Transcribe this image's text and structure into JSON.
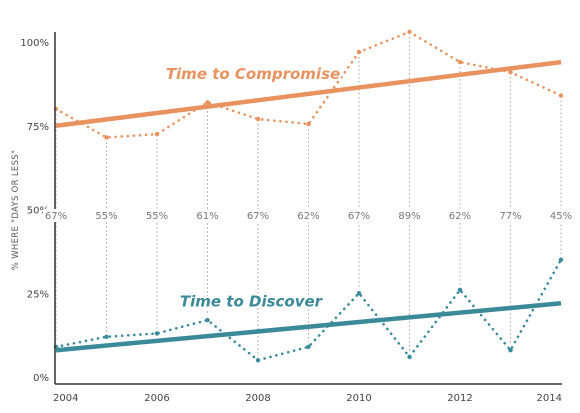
{
  "chart_data": {
    "type": "line",
    "title": "",
    "xlabel": "",
    "ylabel": "% WHERE \"DAYS OR LESS\"",
    "x_ticks": [
      "2004",
      "2006",
      "2008",
      "2010",
      "2012",
      "2014"
    ],
    "y_ticks": [
      "0%",
      "25%",
      "50%",
      "75%",
      "100%"
    ],
    "ylim": [
      0,
      100
    ],
    "xlim": [
      2004,
      2014
    ],
    "grid": false,
    "legend": "inline labels",
    "x": [
      2004,
      2005,
      2006,
      2007,
      2008,
      2009,
      2010,
      2011,
      2012,
      2013,
      2014
    ],
    "gap_labels": [
      "67%",
      "55%",
      "55%",
      "61%",
      "67%",
      "62%",
      "67%",
      "89%",
      "62%",
      "77%",
      "45%"
    ],
    "series": [
      {
        "name": "Time to Compromise",
        "color": "#e8935f",
        "style": "dotted",
        "values": [
          80,
          71.5,
          72.5,
          82,
          77,
          75.5,
          97,
          103,
          94,
          91,
          84
        ],
        "trend": [
          75,
          94
        ]
      },
      {
        "name": "Time to Discover",
        "color": "#3a8a99",
        "style": "dotted",
        "values": [
          9,
          12,
          13,
          17,
          5,
          9,
          25,
          6,
          26,
          8,
          35
        ],
        "trend": [
          8,
          22
        ]
      }
    ]
  }
}
